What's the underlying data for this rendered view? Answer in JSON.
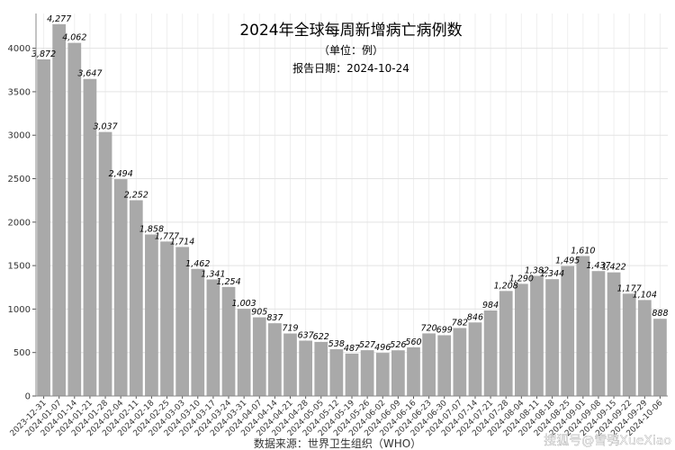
{
  "chart_data": {
    "type": "bar",
    "title": "2024年全球每周新增病亡病例数",
    "subtitle_unit": "（单位：例）",
    "subtitle_date": "报告日期：2024-10-24",
    "source": "数据来源：世界卫生组织（WHO）",
    "watermark": "搜狐号@雪鸮XueXiao",
    "xlabel": "",
    "ylabel": "",
    "ylim": [
      0,
      4400
    ],
    "yticks": [
      0,
      500,
      1000,
      1500,
      2000,
      2500,
      3000,
      3500,
      4000
    ],
    "grid": true,
    "legend": "none",
    "bar_color": "#a9a9a9",
    "categories": [
      "2023-12-31",
      "2024-01-07",
      "2024-01-14",
      "2024-01-21",
      "2024-01-28",
      "2024-02-04",
      "2024-02-11",
      "2024-02-18",
      "2024-02-25",
      "2024-03-03",
      "2024-03-10",
      "2024-03-17",
      "2024-03-24",
      "2024-03-31",
      "2024-04-07",
      "2024-04-14",
      "2024-04-21",
      "2024-04-28",
      "2024-05-05",
      "2024-05-12",
      "2024-05-19",
      "2024-05-26",
      "2024-06-02",
      "2024-06-09",
      "2024-06-16",
      "2024-06-23",
      "2024-06-30",
      "2024-07-07",
      "2024-07-14",
      "2024-07-21",
      "2024-07-28",
      "2024-08-04",
      "2024-08-11",
      "2024-08-18",
      "2024-08-25",
      "2024-09-01",
      "2024-09-08",
      "2024-09-15",
      "2024-09-22",
      "2024-09-29",
      "2024-10-06"
    ],
    "values": [
      3872,
      4277,
      4062,
      3647,
      3037,
      2494,
      2252,
      1858,
      1777,
      1714,
      1462,
      1341,
      1254,
      1003,
      905,
      837,
      719,
      637,
      622,
      538,
      487,
      527,
      496,
      526,
      560,
      720,
      699,
      782,
      846,
      984,
      1208,
      1290,
      1382,
      1344,
      1495,
      1610,
      1437,
      1422,
      1177,
      1104,
      888
    ],
    "value_labels": [
      "3,872",
      "4,277",
      "4,062",
      "3,647",
      "3,037",
      "2,494",
      "2,252",
      "1,858",
      "1,777",
      "1,714",
      "1,462",
      "1,341",
      "1,254",
      "1,003",
      "905",
      "837",
      "719",
      "637",
      "622",
      "538",
      "487",
      "527",
      "496",
      "526",
      "560",
      "720",
      "699",
      "782",
      "846",
      "984",
      "1,208",
      "1,290",
      "1,382",
      "1,344",
      "1,495",
      "1,610",
      "1,437",
      "1,422",
      "1,177",
      "1,104",
      "888"
    ]
  }
}
